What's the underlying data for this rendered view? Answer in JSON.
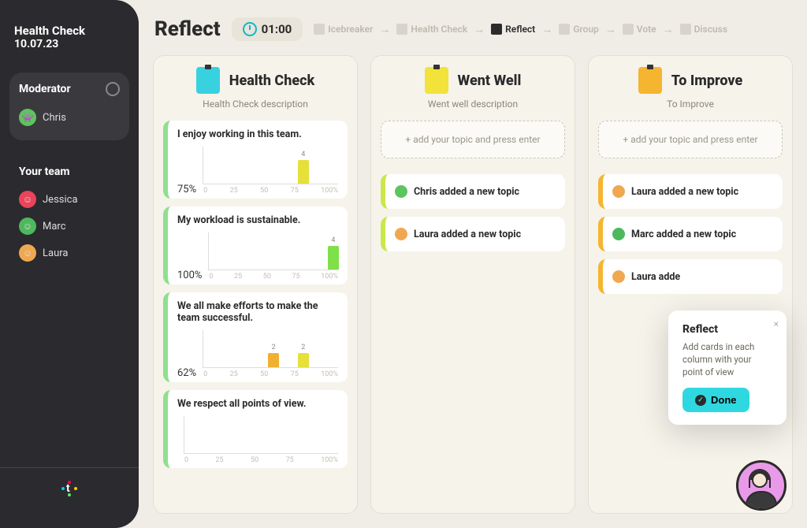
{
  "sidebar": {
    "title": "Health Check",
    "date": "10.07.23",
    "moderator_label": "Moderator",
    "moderator": {
      "name": "Chris",
      "avatar_bg": "#5ec45e"
    },
    "team_label": "Your team",
    "team": [
      {
        "name": "Jessica",
        "avatar_bg": "#e8445a"
      },
      {
        "name": "Marc",
        "avatar_bg": "#4eb85e"
      },
      {
        "name": "Laura",
        "avatar_bg": "#f0a850"
      }
    ]
  },
  "header": {
    "title": "Reflect",
    "timer": "01:00",
    "steps": [
      {
        "label": "Icebreaker",
        "active": false
      },
      {
        "label": "Health Check",
        "active": false
      },
      {
        "label": "Reflect",
        "active": true
      },
      {
        "label": "Group",
        "active": false
      },
      {
        "label": "Vote",
        "active": false
      },
      {
        "label": "Discuss",
        "active": false
      }
    ]
  },
  "columns": {
    "health_check": {
      "title": "Health Check",
      "description": "Health Check description",
      "icon_bg": "#38d1e0",
      "icon_glyph": "📊",
      "accent": "#8ee08e",
      "x_ticks": [
        "0",
        "25",
        "50",
        "75",
        "100%"
      ],
      "cards": [
        {
          "title": "I enjoy working in this team.",
          "percent": "75%",
          "bars": [
            {
              "pos": 3,
              "height": 30,
              "value": "4",
              "color": "#e5e03a"
            }
          ]
        },
        {
          "title": "My workload is sustainable.",
          "percent": "100%",
          "bars": [
            {
              "pos": 4,
              "height": 30,
              "value": "4",
              "color": "#7fe04a"
            }
          ]
        },
        {
          "title": "We all make efforts to make the team successful.",
          "percent": "62%",
          "bars": [
            {
              "pos": 2,
              "height": 18,
              "value": "2",
              "color": "#f0b030"
            },
            {
              "pos": 3,
              "height": 18,
              "value": "2",
              "color": "#e5e03a"
            }
          ]
        },
        {
          "title": "We respect all points of view.",
          "percent": "",
          "bars": []
        }
      ]
    },
    "went_well": {
      "title": "Went Well",
      "description": "Went well description",
      "icon_bg": "#f2e23a",
      "icon_glyph": "✔",
      "accent": "#c9e84a",
      "placeholder": "+ add your topic and press enter",
      "cards": [
        {
          "text": "Chris added a new topic",
          "avatar_bg": "#5ec45e"
        },
        {
          "text": "Laura added a new topic",
          "avatar_bg": "#f0a850"
        }
      ]
    },
    "to_improve": {
      "title": "To Improve",
      "description": "To Improve",
      "icon_bg": "#f5b530",
      "icon_glyph": "✖",
      "accent": "#f5b530",
      "placeholder": "+ add your topic and press enter",
      "cards": [
        {
          "text": "Laura added a new topic",
          "avatar_bg": "#f0a850"
        },
        {
          "text": "Marc added a new topic",
          "avatar_bg": "#4eb85e"
        },
        {
          "text": "Laura adde",
          "avatar_bg": "#f0a850"
        }
      ]
    }
  },
  "hint": {
    "title": "Reflect",
    "text": "Add cards in each column with your point of view",
    "button": "Done"
  },
  "colors": {
    "page_bg": "#f0ede6",
    "sidebar_bg": "#2b2a2e",
    "column_bg": "#f6f3eb",
    "timer_accent": "#10b8c9",
    "done_btn": "#2fd8e0",
    "fab_bg": "#e89ae8"
  }
}
